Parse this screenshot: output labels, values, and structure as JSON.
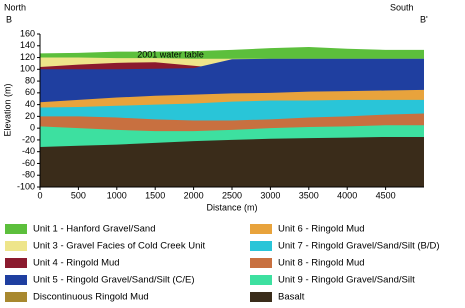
{
  "chart_data": {
    "type": "cross-section",
    "labels": {
      "left_direction": "North",
      "left_point": "B",
      "right_direction": "South",
      "right_point": "B'",
      "annotation": "2001 water table"
    },
    "x_label": "Distance (m)",
    "y_label": "Elevation (m)",
    "x": [
      0,
      500,
      1000,
      1500,
      2000,
      2500,
      3000,
      3500,
      4000,
      4500,
      5000
    ],
    "xlim": [
      0,
      5000
    ],
    "xticks": [
      0,
      500,
      1000,
      1500,
      2000,
      2500,
      3000,
      3500,
      4000,
      4500
    ],
    "ylim": [
      -100,
      160
    ],
    "yticks": [
      -100,
      -80,
      -60,
      -40,
      -20,
      0,
      20,
      40,
      60,
      80,
      100,
      120,
      140,
      160
    ],
    "series": [
      {
        "name": "Unit 1 - Hanford Gravel/Sand",
        "color": "#5cbf3c",
        "values": [
          127,
          128,
          130,
          130,
          131,
          133,
          136,
          138,
          135,
          133,
          133
        ]
      },
      {
        "name": "Unit 3 - Gravel Facies of Cold Creek Unit",
        "color": "#eee58a",
        "values": [
          120,
          120,
          119,
          119,
          118,
          118,
          118,
          118,
          118,
          118,
          118
        ]
      },
      {
        "name": "Unit 4 - Ringold Mud",
        "color": "#8b1a2e",
        "values": [
          104,
          108,
          111,
          112,
          106,
          100,
          95,
          95,
          95,
          95,
          95
        ]
      },
      {
        "name": "Unit 5 - Ringold Gravel/Sand/Silt (C/E)",
        "color": "#1f3fa0",
        "values": [
          100,
          100,
          100,
          101,
          102,
          117,
          118,
          118,
          118,
          118,
          118
        ]
      },
      {
        "name": "Discontinuous Ringold Mud",
        "color": "#a8882e"
      },
      {
        "name": "Unit 6 - Ringold Mud",
        "color": "#e8a33c",
        "values": [
          44,
          48,
          52,
          55,
          57,
          59,
          60,
          62,
          63,
          64,
          65
        ]
      },
      {
        "name": "Unit 7 - Ringold Gravel/Sand/Silt (B/D)",
        "color": "#29c5d8",
        "values": [
          35,
          36,
          38,
          40,
          42,
          45,
          47,
          47,
          48,
          48,
          48
        ]
      },
      {
        "name": "Unit 8 - Ringold Mud",
        "color": "#c87040",
        "values": [
          20,
          20,
          18,
          15,
          13,
          13,
          15,
          18,
          20,
          23,
          25
        ]
      },
      {
        "name": "Unit 9 - Ringold Gravel/Sand/Silt",
        "color": "#3de0a0",
        "values": [
          3,
          0,
          -3,
          -5,
          -5,
          -3,
          0,
          2,
          3,
          5,
          5
        ]
      },
      {
        "name": "Basalt",
        "color": "#3a2c1a",
        "values": [
          -32,
          -30,
          -28,
          -25,
          -22,
          -20,
          -18,
          -17,
          -16,
          -15,
          -15
        ]
      }
    ]
  }
}
